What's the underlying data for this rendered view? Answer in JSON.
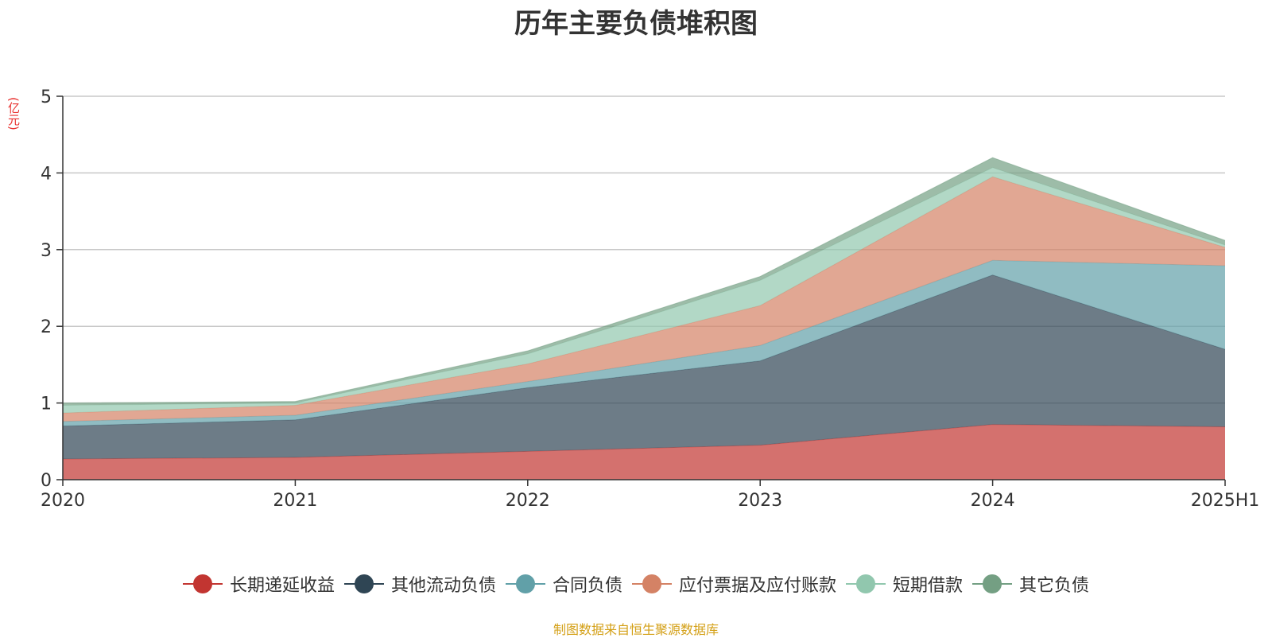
{
  "chart_data": {
    "type": "area",
    "stacked": true,
    "title": "历年主要负债堆积图",
    "y_unit": "(亿元)",
    "categories": [
      "2020",
      "2021",
      "2022",
      "2023",
      "2024",
      "2025H1"
    ],
    "ylim": [
      0,
      5
    ],
    "y_ticks": [
      "0",
      "1",
      "2",
      "3",
      "4",
      "5"
    ],
    "grid": true,
    "legend_position": "bottom",
    "series": [
      {
        "name": "长期递延收益",
        "color": "#c23531",
        "values": [
          0.27,
          0.29,
          0.37,
          0.45,
          0.72,
          0.69
        ]
      },
      {
        "name": "其他流动负债",
        "color": "#2f4554",
        "values": [
          0.43,
          0.49,
          0.83,
          1.1,
          1.95,
          1.01
        ]
      },
      {
        "name": "合同负债",
        "color": "#61a0a8",
        "values": [
          0.06,
          0.06,
          0.08,
          0.2,
          0.19,
          1.09
        ]
      },
      {
        "name": "应付票据及应付账款",
        "color": "#d48265",
        "values": [
          0.11,
          0.13,
          0.23,
          0.52,
          1.09,
          0.24
        ]
      },
      {
        "name": "短期借款",
        "color": "#91c7ae",
        "values": [
          0.1,
          0.03,
          0.13,
          0.33,
          0.12,
          0.03
        ]
      },
      {
        "name": "其它负债",
        "color": "#749f83",
        "values": [
          0.03,
          0.02,
          0.04,
          0.05,
          0.13,
          0.06
        ]
      }
    ]
  },
  "source_note": "制图数据来自恒生聚源数据库"
}
